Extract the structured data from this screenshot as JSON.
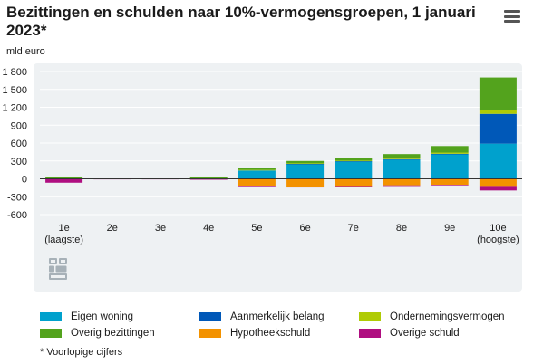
{
  "header": {
    "title": "Bezittingen en schulden naar 10%-vermogensgroepen, 1 januari 2023*",
    "menu_icon": "hamburger-menu-icon"
  },
  "footnote": "* Voorlopige cijfers",
  "logo_icon": "cbs-logo-icon",
  "chart_data": {
    "type": "bar",
    "stacked": true,
    "ylabel": "mld euro",
    "ylim": [
      -600,
      1800
    ],
    "yticks": [
      -600,
      -300,
      0,
      300,
      600,
      900,
      1200,
      1500,
      1800
    ],
    "ytick_labels": [
      "-600",
      "-300",
      "0",
      "300",
      "600",
      "900",
      "1 200",
      "1 500",
      "1 800"
    ],
    "grid": true,
    "legend_position": "bottom",
    "categories": [
      "1e\n(laagste)",
      "2e",
      "3e",
      "4e",
      "5e",
      "6e",
      "7e",
      "8e",
      "9e",
      "10e\n(hoogste)"
    ],
    "series": [
      {
        "name": "Eigen woning",
        "color": "#00a1cd",
        "values": [
          0,
          0,
          0,
          0,
          140,
          245,
          290,
          320,
          410,
          590
        ]
      },
      {
        "name": "Aanmerkelijk belang",
        "color": "#0058b8",
        "values": [
          0,
          0,
          0,
          0,
          0,
          5,
          5,
          10,
          10,
          500
        ]
      },
      {
        "name": "Ondernemingsvermogen",
        "color": "#afcb05",
        "values": [
          0,
          0,
          0,
          5,
          10,
          10,
          10,
          15,
          20,
          60
        ]
      },
      {
        "name": "Overig bezittingen",
        "color": "#53a31d",
        "values": [
          25,
          3,
          5,
          30,
          30,
          40,
          50,
          70,
          110,
          550
        ]
      },
      {
        "name": "Hypotheekschuld",
        "color": "#f39200",
        "values": [
          -5,
          0,
          0,
          -5,
          -115,
          -135,
          -120,
          -110,
          -100,
          -120
        ]
      },
      {
        "name": "Overige schuld",
        "color": "#af0e80",
        "values": [
          -60,
          -5,
          -5,
          -10,
          -10,
          -10,
          -10,
          -10,
          -10,
          -75
        ]
      }
    ]
  }
}
